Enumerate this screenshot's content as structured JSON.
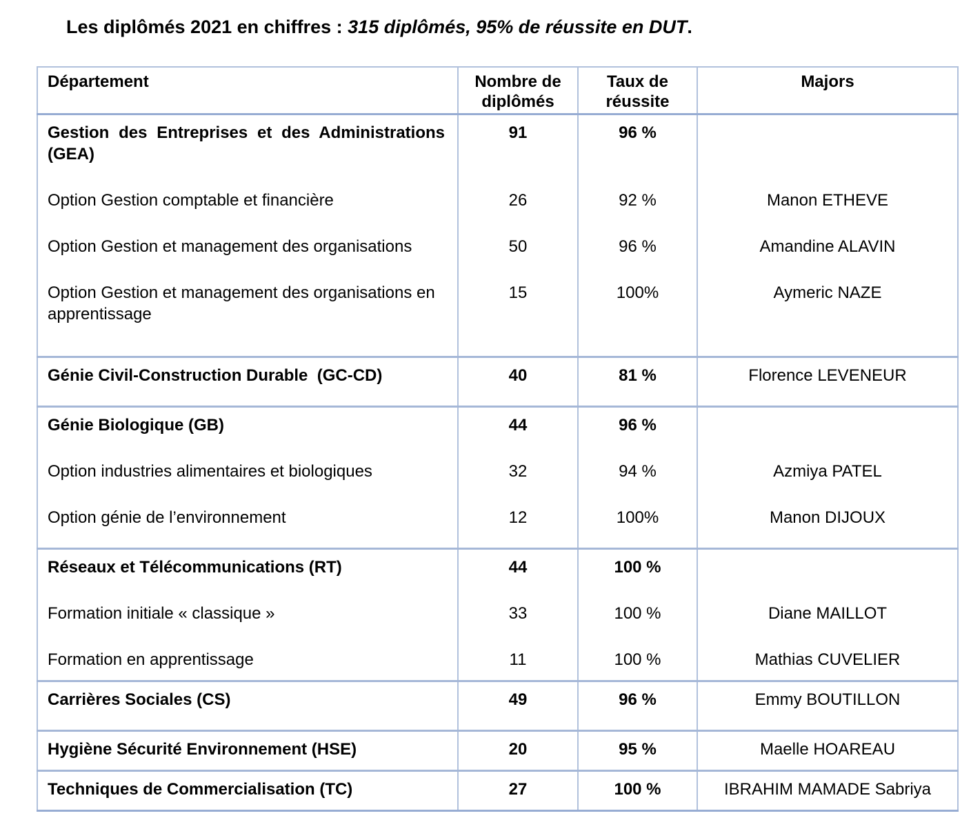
{
  "title": {
    "prefix": "Les diplômés 2021 en chiffres : ",
    "emphasis": "315 diplômés, 95% de réussite en DUT",
    "suffix": "."
  },
  "colors": {
    "table_border_light": "#b1c1dc",
    "table_border_strong": "#97acd3",
    "text": "#000000",
    "background": "#ffffff"
  },
  "table": {
    "columns": [
      "Département",
      "Nombre de diplômés",
      "Taux de réussite",
      "Majors"
    ],
    "blocks": [
      {
        "rows": [
          {
            "dept": "Gestion des Entreprises et des Administrations (GEA)",
            "count": "91",
            "rate": "96 %",
            "major": ""
          },
          {
            "dept": "Option Gestion comptable et financière",
            "count": "26",
            "rate": "92 %",
            "major": "Manon ETHEVE"
          },
          {
            "dept": "Option Gestion et management des organisations",
            "count": "50",
            "rate": "96 %",
            "major": "Amandine ALAVIN"
          },
          {
            "dept": "Option Gestion et management des organisations en apprentissage",
            "count": "15",
            "rate": "100%",
            "major": "Aymeric NAZE"
          }
        ]
      },
      {
        "rows": [
          {
            "dept": "Génie Civil-Construction Durable  (GC-CD)",
            "count": "40",
            "rate": "81 %",
            "major": "Florence LEVENEUR"
          }
        ]
      },
      {
        "rows": [
          {
            "dept": "Génie Biologique (GB)",
            "count": "44",
            "rate": "96 %",
            "major": ""
          },
          {
            "dept": "Option industries alimentaires et biologiques",
            "count": "32",
            "rate": "94 %",
            "major": "Azmiya PATEL"
          },
          {
            "dept": "Option génie de l’environnement",
            "count": "12",
            "rate": "100%",
            "major": "Manon DIJOUX"
          }
        ]
      },
      {
        "rows": [
          {
            "dept": "Réseaux et Télécommunications (RT)",
            "count": "44",
            "rate": "100 %",
            "major": ""
          },
          {
            "dept": "Formation initiale « classique »",
            "count": "33",
            "rate": "100 %",
            "major": "Diane MAILLOT"
          },
          {
            "dept": "Formation en apprentissage",
            "count": "11",
            "rate": "100 %",
            "major": "Mathias CUVELIER"
          }
        ]
      },
      {
        "rows": [
          {
            "dept": "Carrières Sociales (CS)",
            "count": "49",
            "rate": "96 %",
            "major": "Emmy BOUTILLON"
          }
        ]
      },
      {
        "rows": [
          {
            "dept": "Hygiène Sécurité Environnement (HSE)",
            "count": "20",
            "rate": "95 %",
            "major": "Maelle HOAREAU"
          }
        ]
      },
      {
        "rows": [
          {
            "dept": "Techniques de Commercialisation (TC)",
            "count": "27",
            "rate": "100 %",
            "major": "IBRAHIM MAMADE Sabriya"
          }
        ]
      }
    ]
  }
}
